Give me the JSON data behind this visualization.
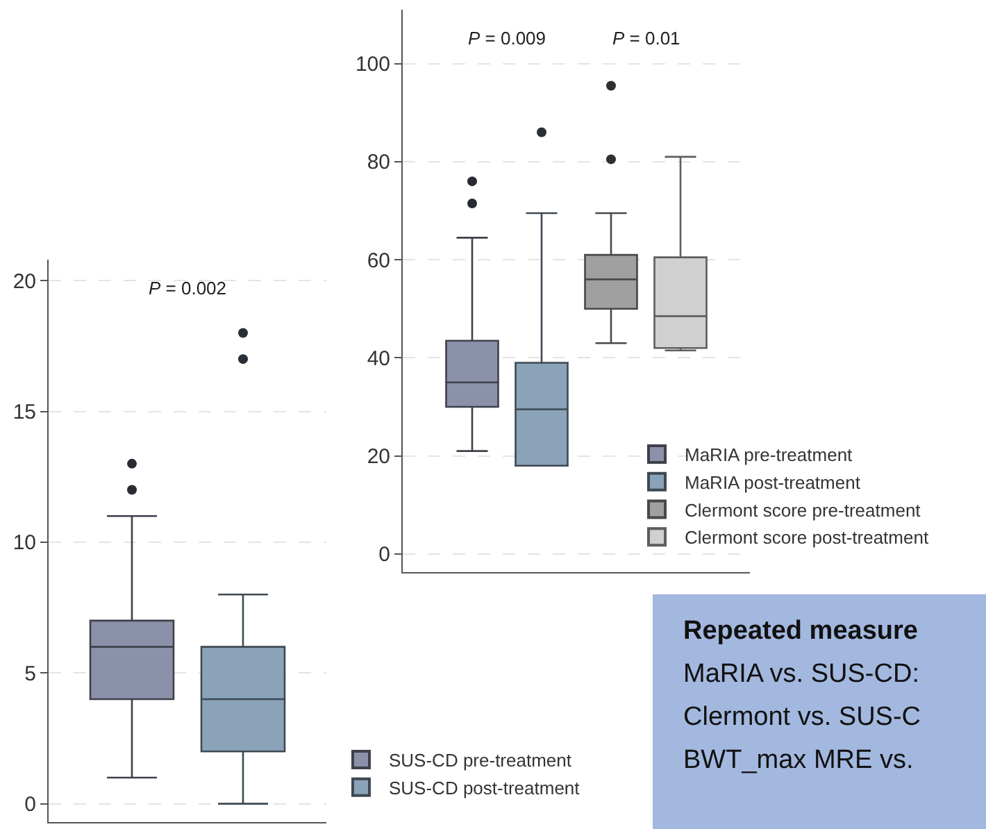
{
  "chart_data": [
    {
      "type": "box",
      "categories": [
        null
      ],
      "ylim": [
        -0.7,
        20.8
      ],
      "yticks": [
        0,
        5,
        10,
        15,
        20
      ],
      "grid": "y",
      "legend": "bottom right",
      "tick_labels": "y",
      "annotations": [
        "P = 0.002"
      ],
      "series": [
        {
          "name": "SUS-CD pre-treatment",
          "color": "#8a91a8",
          "boxes": [
            {
              "low": 1,
              "q1": 4,
              "median": 6,
              "q3": 7,
              "high": 11,
              "outliers": [
                12,
                13
              ]
            }
          ]
        },
        {
          "name": "SUS-CD post-treatment",
          "color": "#8aa3b9",
          "boxes": [
            {
              "low": 0,
              "q1": 2,
              "median": 4,
              "q3": 6,
              "high": 8,
              "outliers": [
                17,
                18
              ]
            }
          ]
        }
      ]
    },
    {
      "type": "box",
      "categories": [
        null
      ],
      "ylim": [
        -3.7,
        111
      ],
      "yticks": [
        0,
        20,
        40,
        60,
        80,
        100
      ],
      "grid": "y",
      "legend": "bottom right",
      "tick_labels": "y",
      "annotations": [
        "P = 0.009",
        "P = 0.01"
      ],
      "series": [
        {
          "name": "MaRIA pre-treatment",
          "color": "#8a91a8",
          "boxes": [
            {
              "low": 21,
              "q1": 30,
              "median": 35,
              "q3": 43.5,
              "high": 64.5,
              "outliers": [
                71.5,
                76
              ]
            }
          ]
        },
        {
          "name": "MaRIA post-treatment",
          "color": "#8aa3b9",
          "boxes": [
            {
              "low": 18,
              "q1": 18,
              "median": 29.5,
              "q3": 39,
              "high": 69.5,
              "outliers": [
                86
              ]
            }
          ]
        },
        {
          "name": "Clermont score pre-treatment",
          "color": "#a0a0a0",
          "boxes": [
            {
              "low": 43,
              "q1": 50,
              "median": 56,
              "q3": 61,
              "high": 69.5,
              "outliers": [
                80.5,
                95.5
              ]
            }
          ]
        },
        {
          "name": "Clermont score post-treatment",
          "color": "#d0d0d0",
          "boxes": [
            {
              "low": 41.5,
              "q1": 42,
              "median": 48.5,
              "q3": 60.5,
              "high": 81
            }
          ]
        }
      ]
    },
    {
      "type": "other",
      "title": "Repeated measure",
      "annotations": [
        "MaRIA vs. SUS-CD:",
        "Clermont vs. SUS-C",
        "BWT_max MRE vs."
      ]
    }
  ]
}
